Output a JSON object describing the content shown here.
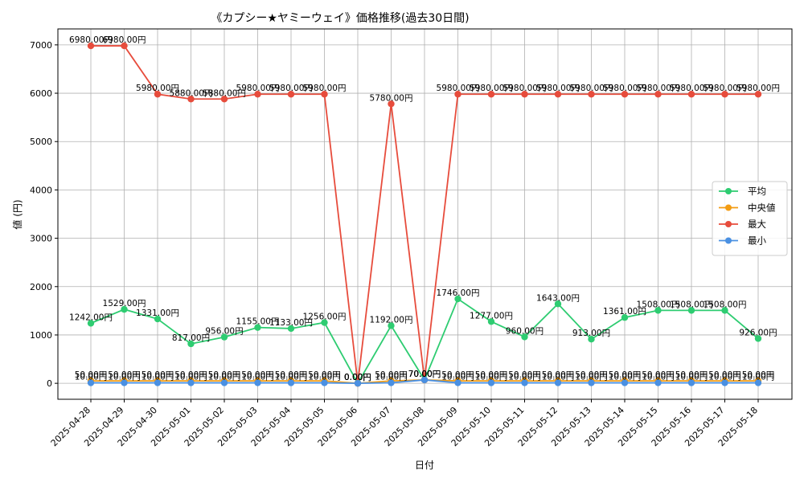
{
  "chart_data": {
    "type": "line",
    "title": "《カプシー★ヤミーウェイ》価格推移(過去30日間)",
    "xlabel": "日付",
    "ylabel": "値 (円)",
    "ylim": [
      -330,
      7330
    ],
    "yticks": [
      0,
      1000,
      2000,
      3000,
      4000,
      5000,
      6000,
      7000
    ],
    "grid": true,
    "legend_position": "center-right",
    "label_suffix": "円",
    "categories": [
      "2025-04-28",
      "2025-04-29",
      "2025-04-30",
      "2025-05-01",
      "2025-05-02",
      "2025-05-03",
      "2025-05-04",
      "2025-05-05",
      "2025-05-06",
      "2025-05-07",
      "2025-05-08",
      "2025-05-09",
      "2025-05-10",
      "2025-05-11",
      "2025-05-12",
      "2025-05-13",
      "2025-05-14",
      "2025-05-15",
      "2025-05-16",
      "2025-05-17",
      "2025-05-18"
    ],
    "series": [
      {
        "name": "平均",
        "color": "#2ecc71",
        "values": [
          1242,
          1529,
          1331,
          817,
          956,
          1155,
          1133,
          1256,
          0,
          1192,
          70,
          1746,
          1277,
          960,
          1643,
          913,
          1361,
          1508,
          1508,
          1508,
          926
        ]
      },
      {
        "name": "中央値",
        "color": "#f39c12",
        "values": [
          50,
          50,
          50,
          50,
          50,
          50,
          50,
          50,
          0,
          50,
          70,
          50,
          50,
          50,
          50,
          50,
          50,
          50,
          50,
          50,
          50
        ]
      },
      {
        "name": "最大",
        "color": "#e74c3c",
        "values": [
          6980,
          6980,
          5980,
          5880,
          5880,
          5980,
          5980,
          5980,
          0,
          5780,
          70,
          5980,
          5980,
          5980,
          5980,
          5980,
          5980,
          5980,
          5980,
          5980,
          5980
        ]
      },
      {
        "name": "最小",
        "color": "#4a90e2",
        "values": [
          10,
          10,
          10,
          10,
          10,
          10,
          10,
          10,
          0,
          10,
          70,
          10,
          10,
          10,
          10,
          10,
          10,
          10,
          10,
          10,
          10
        ]
      }
    ]
  }
}
